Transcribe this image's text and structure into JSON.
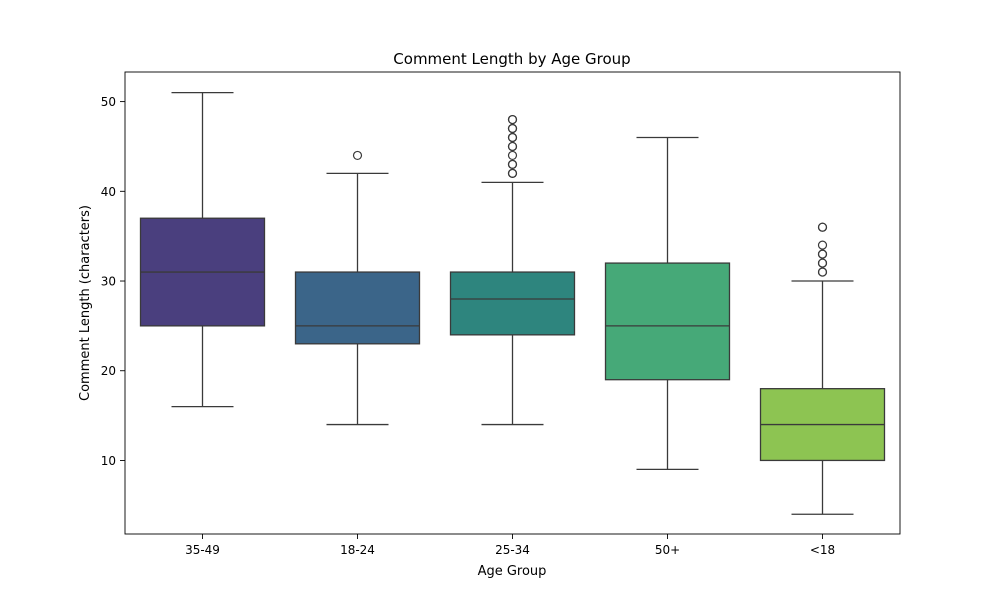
{
  "chart_data": {
    "type": "box",
    "title": "Comment Length by Age Group",
    "xlabel": "Age Group",
    "ylabel": "Comment Length (characters)",
    "ylim": [
      1.8,
      53.3
    ],
    "yticks": [
      10,
      20,
      30,
      40,
      50
    ],
    "grid": false,
    "legend": "none",
    "categories": [
      "35-49",
      "18-24",
      "25-34",
      "50+",
      "<18"
    ],
    "boxes": [
      {
        "category": "35-49",
        "color": "#4a3f7e",
        "whisker_low": 16,
        "q1": 25,
        "median": 31,
        "q3": 37,
        "whisker_high": 51,
        "outliers": []
      },
      {
        "category": "18-24",
        "color": "#3b6589",
        "whisker_low": 14,
        "q1": 23,
        "median": 25,
        "q3": 31,
        "whisker_high": 42,
        "outliers": [
          44
        ]
      },
      {
        "category": "25-34",
        "color": "#2e857e",
        "whisker_low": 14,
        "q1": 24,
        "median": 28,
        "q3": 31,
        "whisker_high": 41,
        "outliers": [
          42,
          42,
          43,
          43,
          44,
          45,
          45,
          46,
          46,
          47,
          47,
          48,
          48
        ]
      },
      {
        "category": "50+",
        "color": "#46a978",
        "whisker_low": 9,
        "q1": 19,
        "median": 25,
        "q3": 32,
        "whisker_high": 46,
        "outliers": []
      },
      {
        "category": "<18",
        "color": "#8dc452",
        "whisker_low": 4,
        "q1": 10,
        "median": 14,
        "q3": 18,
        "whisker_high": 30,
        "outliers": [
          31,
          31,
          32,
          32,
          33,
          33,
          34,
          36,
          36
        ]
      }
    ]
  }
}
